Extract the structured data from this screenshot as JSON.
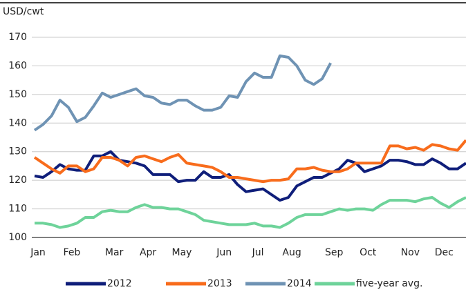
{
  "chart_data": {
    "type": "line",
    "y_axis_label": "USD/cwt",
    "categories": [
      "Jan",
      null,
      null,
      null,
      "Feb",
      null,
      null,
      null,
      null,
      "Mar",
      null,
      null,
      null,
      "Apr",
      null,
      null,
      null,
      "May",
      null,
      null,
      null,
      null,
      "Jun",
      null,
      null,
      null,
      "Jul",
      null,
      null,
      null,
      "Aug",
      null,
      null,
      null,
      null,
      "Sep",
      null,
      null,
      null,
      "Oct",
      null,
      null,
      null,
      null,
      "Nov",
      null,
      null,
      null,
      "Dec",
      null,
      null,
      null
    ],
    "series": [
      {
        "name": "2012",
        "color": "#0f1e7a",
        "values": [
          121.5,
          121,
          123,
          125.5,
          124,
          123.5,
          123.5,
          128.5,
          128.5,
          130,
          127,
          126.5,
          126,
          125,
          122,
          122,
          122,
          119.5,
          120,
          120,
          123,
          121,
          121,
          122,
          118.5,
          116,
          116.5,
          117,
          115,
          113,
          114,
          118,
          119.5,
          121,
          121,
          122.5,
          124,
          127,
          126,
          123,
          124,
          125,
          127,
          127,
          126.5,
          125.5,
          125.5,
          127.5,
          126,
          124,
          124,
          126
        ]
      },
      {
        "name": "2013",
        "color": "#f86c1c",
        "values": [
          128,
          126,
          124,
          122.5,
          125,
          125,
          123,
          124,
          128,
          128,
          127,
          125,
          128,
          128.5,
          127.5,
          126.5,
          128,
          129,
          126,
          125.5,
          125,
          124.5,
          123,
          121,
          121,
          120.5,
          120,
          119.5,
          120,
          120,
          120.5,
          124,
          124,
          124.5,
          123.5,
          123,
          123,
          124,
          126,
          126,
          126,
          126,
          132,
          132,
          131,
          131.5,
          130.5,
          132.5,
          132,
          131,
          130.5,
          134
        ]
      },
      {
        "name": "2014",
        "color": "#6f93b4",
        "values": [
          137.5,
          139.5,
          142.5,
          148,
          145.5,
          140.5,
          142,
          146,
          150.5,
          149,
          150,
          151,
          152,
          149.5,
          149,
          147,
          146.5,
          148,
          148,
          146,
          144.5,
          144.5,
          145.5,
          149.5,
          149,
          154.5,
          157.5,
          156,
          156,
          163.5,
          163,
          160,
          155,
          153.5,
          155.5,
          161,
          null,
          null,
          null,
          null,
          null,
          null,
          null,
          null,
          null,
          null,
          null,
          null,
          null,
          null,
          null,
          null
        ]
      },
      {
        "name": "five-year avg.",
        "color": "#6ed39a",
        "values": [
          105,
          105,
          104.5,
          103.5,
          104,
          105,
          107,
          107,
          109,
          109.5,
          109,
          109,
          110.5,
          111.5,
          110.5,
          110.5,
          110,
          110,
          109,
          108,
          106,
          105.5,
          105,
          104.5,
          104.5,
          104.5,
          105,
          104,
          104,
          103.5,
          105,
          107,
          108,
          108,
          108,
          109,
          110,
          109.5,
          110,
          110,
          109.5,
          111.5,
          113,
          113,
          113,
          112.5,
          113.5,
          114,
          112,
          110.5,
          112.5,
          114
        ]
      }
    ],
    "ylim": [
      100,
      170
    ],
    "yticks": [
      100,
      110,
      120,
      130,
      140,
      150,
      160,
      170
    ],
    "grid": true,
    "legend": "bottom"
  }
}
